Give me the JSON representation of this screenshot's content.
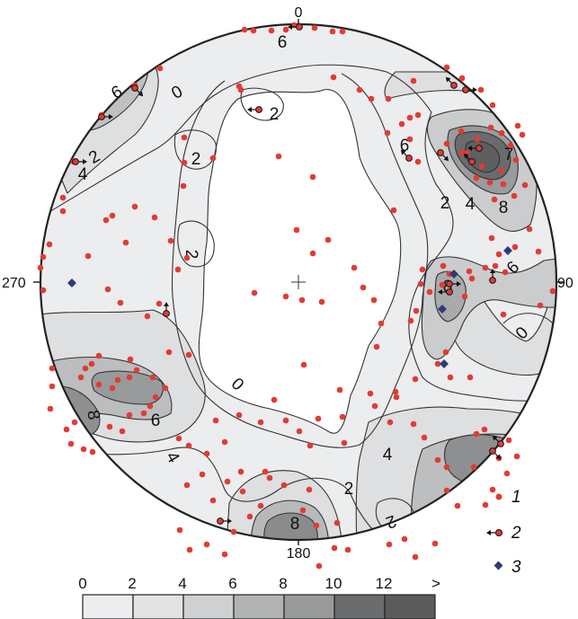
{
  "diagram": {
    "azimuth_labels": {
      "north": "0",
      "east": "90",
      "south": "180",
      "west": "270"
    },
    "contour_labels": [
      "0",
      "0",
      "0",
      "2",
      "2",
      "2",
      "2",
      "2",
      "2",
      "4",
      "4",
      "4",
      "4",
      "6",
      "6",
      "6",
      "6",
      "6",
      "8",
      "8",
      "8",
      "8",
      "2"
    ],
    "legend": {
      "items": [
        {
          "label": "1",
          "symbol": "red-dot"
        },
        {
          "label": "2",
          "symbol": "arrow-dot"
        },
        {
          "label": "3",
          "symbol": "blue-diamond"
        }
      ]
    },
    "scale": {
      "ticks": [
        "0",
        "2",
        "4",
        "6",
        "8",
        "10",
        "12",
        ">"
      ],
      "colors": [
        "#ecedef",
        "#e2e3e4",
        "#cfd0d1",
        "#b2b3b4",
        "#999a9b",
        "#6b6c6d",
        "#5a5b5c"
      ]
    },
    "colors": {
      "point": "#e23b32",
      "diamond": "#2e3a78",
      "outline": "#222222"
    }
  }
}
